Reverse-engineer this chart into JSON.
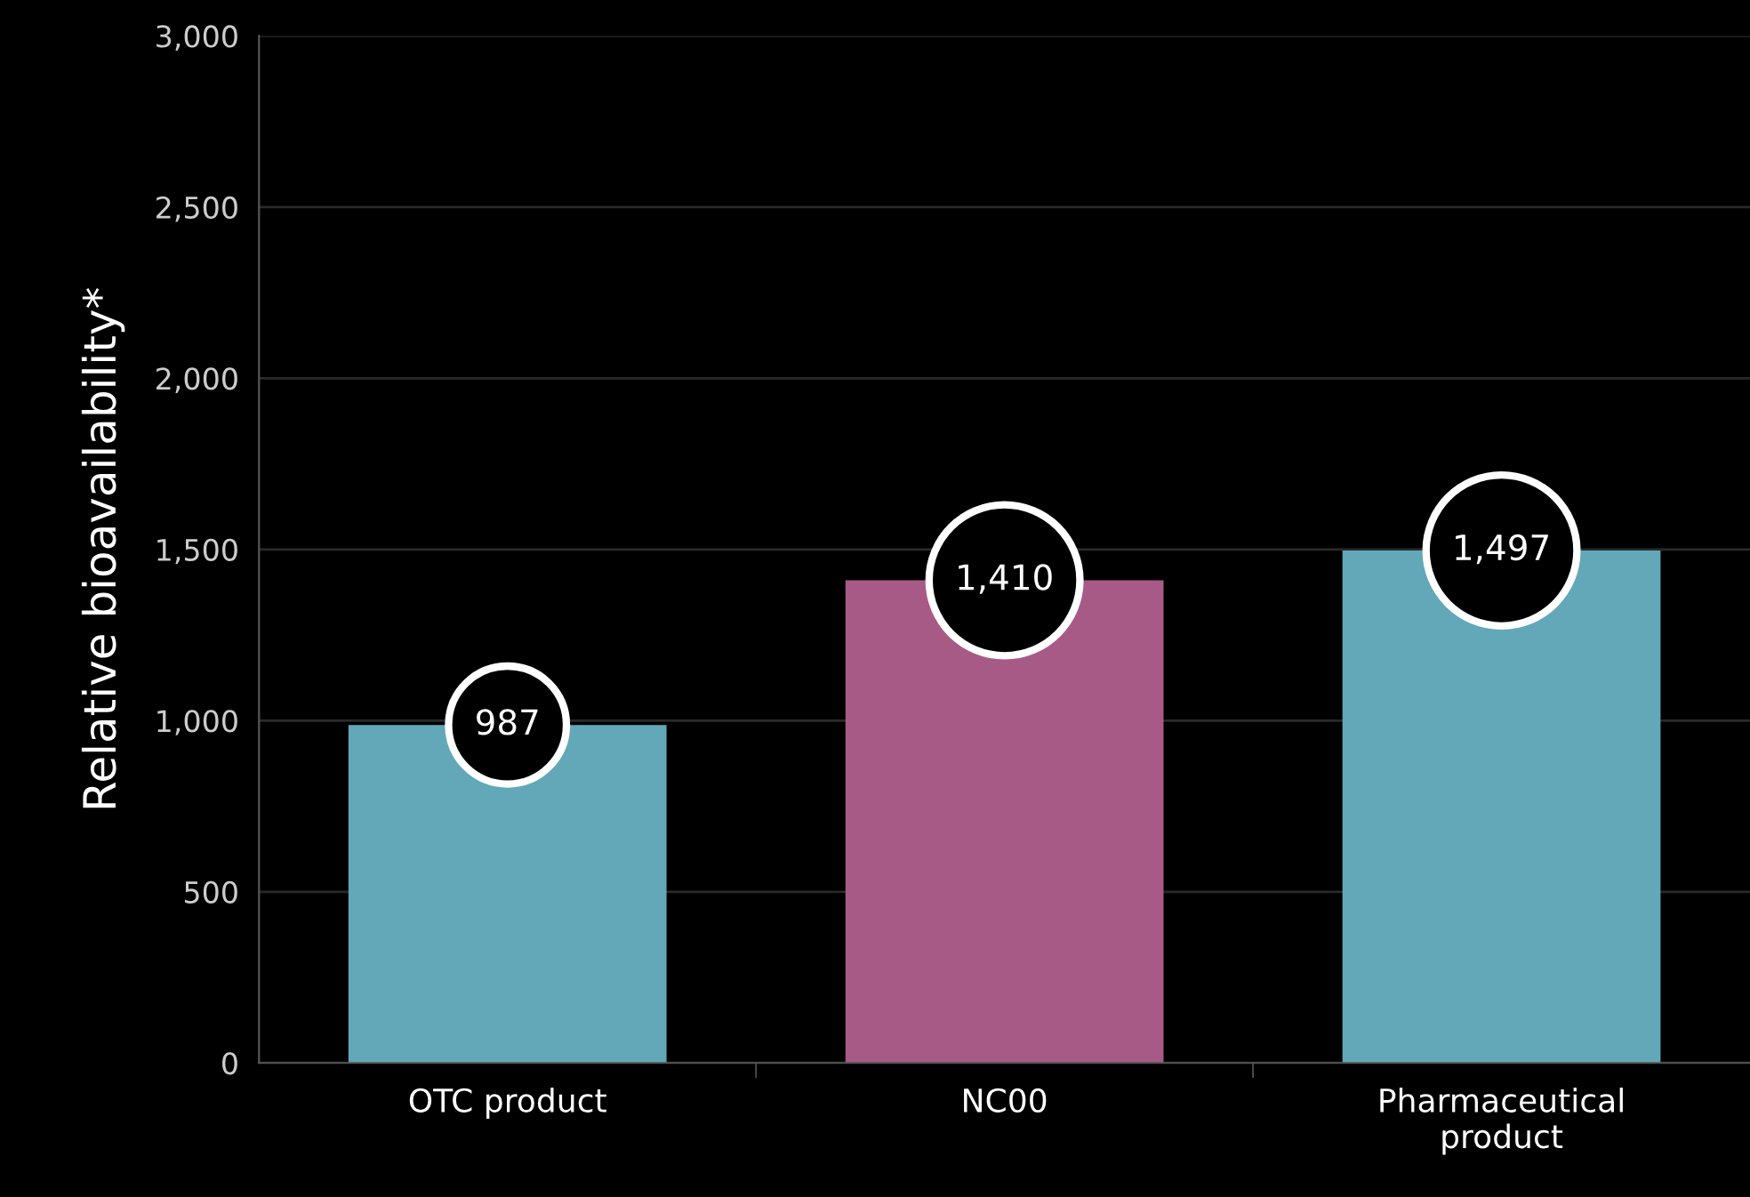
{
  "chart_data": {
    "type": "bar",
    "ylabel": "Relative bioavailability*",
    "categories": [
      "OTC product",
      "NC00",
      "Pharmaceutical\nproduct"
    ],
    "values": [
      987,
      1410,
      1497
    ],
    "colors": [
      "#62a8b8",
      "#a85a87",
      "#62a8b8"
    ],
    "value_labels": [
      "987",
      "1,410",
      "1,497"
    ],
    "ylim": [
      0,
      3000
    ],
    "yticks": [
      0,
      500,
      {
        "value": 1000,
        "label": "1,000"
      },
      {
        "value": 1500,
        "label": "1,500"
      },
      {
        "value": 2000,
        "label": "2,000"
      },
      {
        "value": 2500,
        "label": "2,500"
      },
      {
        "value": 3000,
        "label": "3,000"
      }
    ],
    "grid": "y"
  }
}
